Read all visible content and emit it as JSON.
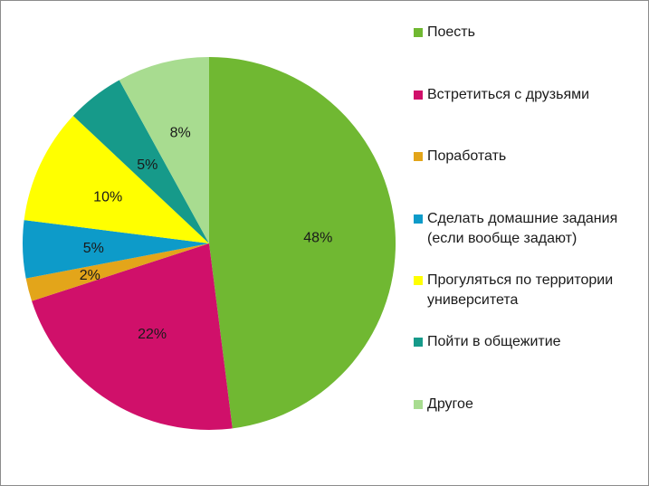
{
  "chart_data": {
    "type": "pie",
    "start_angle_deg": 0,
    "direction": "clockwise",
    "slices": [
      {
        "label": "Поесть",
        "value": 48,
        "display": "48%",
        "color": "#70b832"
      },
      {
        "label": "Встретиться с друзьями",
        "value": 22,
        "display": "22%",
        "color": "#d0106a"
      },
      {
        "label": "Поработать",
        "value": 2,
        "display": "2%",
        "color": "#e3a51a"
      },
      {
        "label": "Сделать домашние задания (если вообще задают)",
        "value": 5,
        "display": "5%",
        "color": "#0d9bc9"
      },
      {
        "label": "Прогуляться по территории университета",
        "value": 10,
        "display": "10%",
        "color": "#ffff00"
      },
      {
        "label": "Пойти в общежитие",
        "value": 5,
        "display": "5%",
        "color": "#169a8a"
      },
      {
        "label": "Другое",
        "value": 8,
        "display": "8%",
        "color": "#a8dc90"
      }
    ],
    "legend_position": "right"
  }
}
